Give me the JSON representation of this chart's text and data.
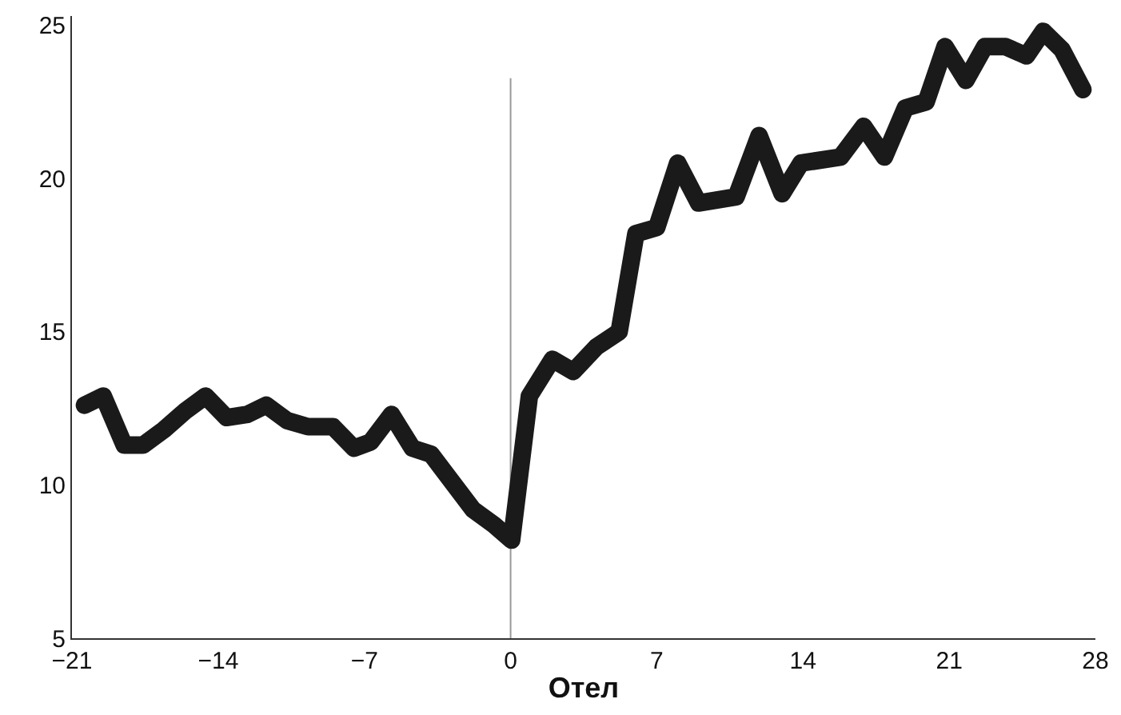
{
  "chart_data": {
    "type": "line",
    "xlabel": "Отел",
    "series": [
      {
        "color": "#1a1a1a",
        "x": [
          -20.4,
          -19.5,
          -18.5,
          -17.6,
          -16.6,
          -15.6,
          -14.6,
          -13.6,
          -12.6,
          -11.7,
          -10.7,
          -9.7,
          -8.5,
          -7.5,
          -6.7,
          -5.7,
          -4.7,
          -3.8,
          -2.8,
          -1.8,
          -0.8,
          0.05,
          0.9,
          2.0,
          3.0,
          4.1,
          5.2,
          6.0,
          7.0,
          8.0,
          9.0,
          10.8,
          11.9,
          13.0,
          13.9,
          15.8,
          16.9,
          17.9,
          18.9,
          19.9,
          20.8,
          21.8,
          22.7,
          23.7,
          24.7,
          25.5,
          26.4,
          27.4
        ],
        "values": [
          12.6,
          12.9,
          11.3,
          11.3,
          11.8,
          12.4,
          12.9,
          12.2,
          12.3,
          12.6,
          12.1,
          11.9,
          11.9,
          11.2,
          11.4,
          12.3,
          11.2,
          11.0,
          10.1,
          9.2,
          8.7,
          8.2,
          12.9,
          14.1,
          13.7,
          14.5,
          15.0,
          18.2,
          18.4,
          20.5,
          19.2,
          19.4,
          21.4,
          19.5,
          20.5,
          20.7,
          21.7,
          20.7,
          22.3,
          22.5,
          24.3,
          23.2,
          24.3,
          24.3,
          24.0,
          24.8,
          24.2,
          22.9
        ]
      }
    ],
    "xlim": [
      -21,
      28
    ],
    "xticks": [
      {
        "value": -21,
        "label": "−21"
      },
      {
        "value": -14,
        "label": "−14"
      },
      {
        "value": -7,
        "label": "−7"
      },
      0,
      7,
      14,
      21,
      28
    ],
    "ylim": [
      5,
      25.3
    ],
    "yticks": [
      5,
      10,
      15,
      20,
      25
    ],
    "ref_lines": [
      {
        "axis": "x",
        "value": 0,
        "color": "#999999"
      }
    ],
    "grid": false,
    "line_style": "solid"
  }
}
